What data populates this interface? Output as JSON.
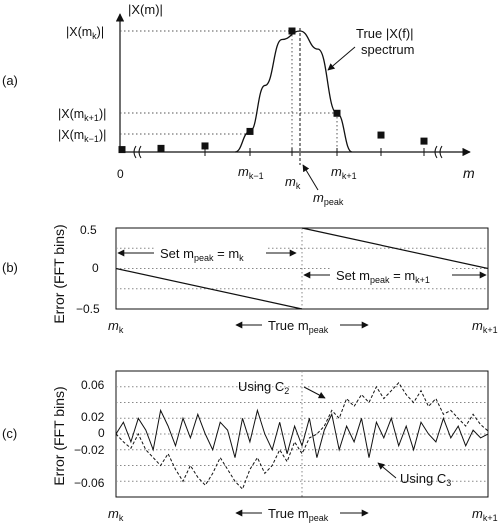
{
  "panel_a": {
    "label": "(a)",
    "ylabel": "|X(m)|",
    "xlabel": "m",
    "origin_label": "0",
    "ticks_y": [
      {
        "base": "|X(m",
        "sub": "k",
        "tail": ")|"
      },
      {
        "base": "|X(m",
        "sub": "k+1",
        "tail": ")|"
      },
      {
        "base": "|X(m",
        "sub": "k−1",
        "tail": ")|"
      }
    ],
    "ticks_x": [
      {
        "base": "m",
        "sub": "k−1"
      },
      {
        "base": "m",
        "sub": "k"
      },
      {
        "base": "m",
        "sub": "k+1"
      }
    ],
    "mpeak": {
      "base": "m",
      "sub": "peak"
    },
    "annotation_line1": "True |X(f)|",
    "annotation_line2": "spectrum"
  },
  "panel_b": {
    "label": "(b)",
    "ylabel": "Error (FFT bins)",
    "yticks": [
      "0.5",
      "0",
      "−0.5"
    ],
    "xleft": {
      "base": "m",
      "sub": "k"
    },
    "xright": {
      "base": "m",
      "sub": "k+1"
    },
    "set_left": {
      "text": "Set m",
      "sub": "peak",
      "eq": " = m",
      "sub2": "k"
    },
    "set_right": {
      "text": "Set m",
      "sub": "peak",
      "eq": " = m",
      "sub2": "k+1"
    },
    "true_label": {
      "text": "True m",
      "sub": "peak"
    }
  },
  "panel_c": {
    "label": "(c)",
    "ylabel": "Error (FFT bins)",
    "yticks": [
      "0.06",
      "0.02",
      "0",
      "−0.02",
      "−0.06"
    ],
    "xleft": {
      "base": "m",
      "sub": "k"
    },
    "xright": {
      "base": "m",
      "sub": "k+1"
    },
    "using_c2": {
      "text": "Using C",
      "sub": "2"
    },
    "using_c3": {
      "text": "Using C",
      "sub": "3"
    },
    "true_label": {
      "text": "True m",
      "sub": "peak"
    }
  },
  "chart_data": [
    {
      "type": "scatter",
      "xlabel": "m",
      "ylabel": "|X(m)|",
      "categories": [
        "0",
        "",
        "",
        "m_k-1",
        "m_k",
        "m_k+1",
        "",
        ""
      ],
      "values": [
        0.02,
        0.03,
        0.05,
        0.17,
        1.0,
        0.32,
        0.14,
        0.09
      ],
      "series": [
        {
          "name": "True |X(f)| spectrum",
          "values": [
            0.0,
            0.17,
            0.55,
            0.93,
            1.0,
            0.85,
            0.32,
            0.0
          ]
        }
      ]
    },
    {
      "type": "line",
      "ylabel": "Error (FFT bins)",
      "ylim": [
        -0.5,
        0.5
      ],
      "series": [
        {
          "values": [
            0,
            -0.5
          ]
        },
        {
          "values": [
            0.5,
            0
          ]
        }
      ]
    },
    {
      "type": "line",
      "ylabel": "Error (FFT bins)",
      "ylim": [
        -0.08,
        0.08
      ],
      "series": [
        {
          "name": "Using C2",
          "values": [
            0.0,
            -0.01,
            -0.018,
            0.0,
            -0.02,
            -0.03,
            -0.04,
            -0.025,
            -0.045,
            -0.06,
            -0.04,
            -0.055,
            -0.065,
            -0.05,
            -0.03,
            -0.045,
            -0.06,
            -0.07,
            -0.045,
            -0.03,
            -0.05,
            -0.04,
            -0.02,
            -0.035,
            -0.01,
            -0.025,
            -0.005,
            0.0,
            0.01,
            0.03,
            0.02,
            0.045,
            0.035,
            0.05,
            0.04,
            0.06,
            0.045,
            0.055,
            0.065,
            0.05,
            0.04,
            0.055,
            0.035,
            0.045,
            0.025,
            0.03,
            0.02,
            0.01,
            0.025,
            0.012,
            0.004
          ]
        },
        {
          "name": "Using C3",
          "values": [
            0.0,
            0.015,
            -0.01,
            0.02,
            0.005,
            -0.02,
            0.03,
            0.01,
            -0.015,
            0.02,
            -0.005,
            0.025,
            0.0,
            -0.02,
            0.015,
            0.005,
            -0.03,
            0.02,
            -0.01,
            0.03,
            0.0,
            -0.02,
            0.015,
            -0.025,
            0.01,
            -0.015,
            0.02,
            -0.03,
            0.005,
            0.025,
            -0.02,
            0.01,
            -0.01,
            0.02,
            -0.03,
            0.015,
            -0.005,
            0.02,
            -0.015,
            0.01,
            -0.02,
            0.015,
            0.0,
            -0.01,
            0.02,
            -0.005,
            0.01,
            -0.015,
            0.005,
            -0.005,
            0.0
          ]
        }
      ]
    }
  ]
}
